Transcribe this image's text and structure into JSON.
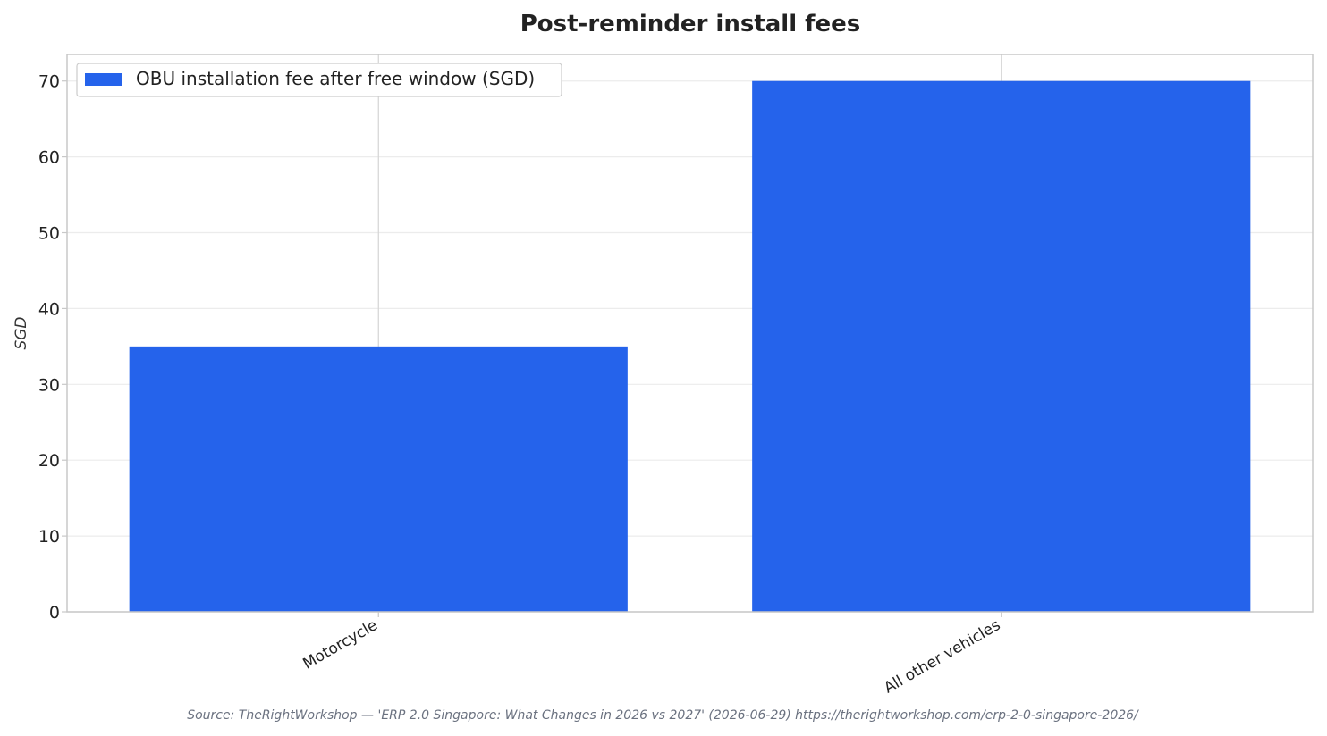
{
  "chart_data": {
    "type": "bar",
    "title": "Post-reminder install fees",
    "xlabel": "",
    "ylabel": "SGD",
    "categories": [
      "Motorcycle",
      "All other vehicles"
    ],
    "series": [
      {
        "name": "OBU installation fee after free window (SGD)",
        "values": [
          35,
          70
        ],
        "color": "#2563eb"
      }
    ],
    "ylim": [
      0,
      73.5
    ],
    "yticks": [
      0,
      10,
      20,
      30,
      40,
      50,
      60,
      70
    ],
    "grid": true,
    "legend_position": "top-left",
    "source": "Source: TheRightWorkshop — 'ERP 2.0 Singapore: What Changes in 2026 vs 2027' (2026-06-29) https://therightworkshop.com/erp-2-0-singapore-2026/"
  }
}
